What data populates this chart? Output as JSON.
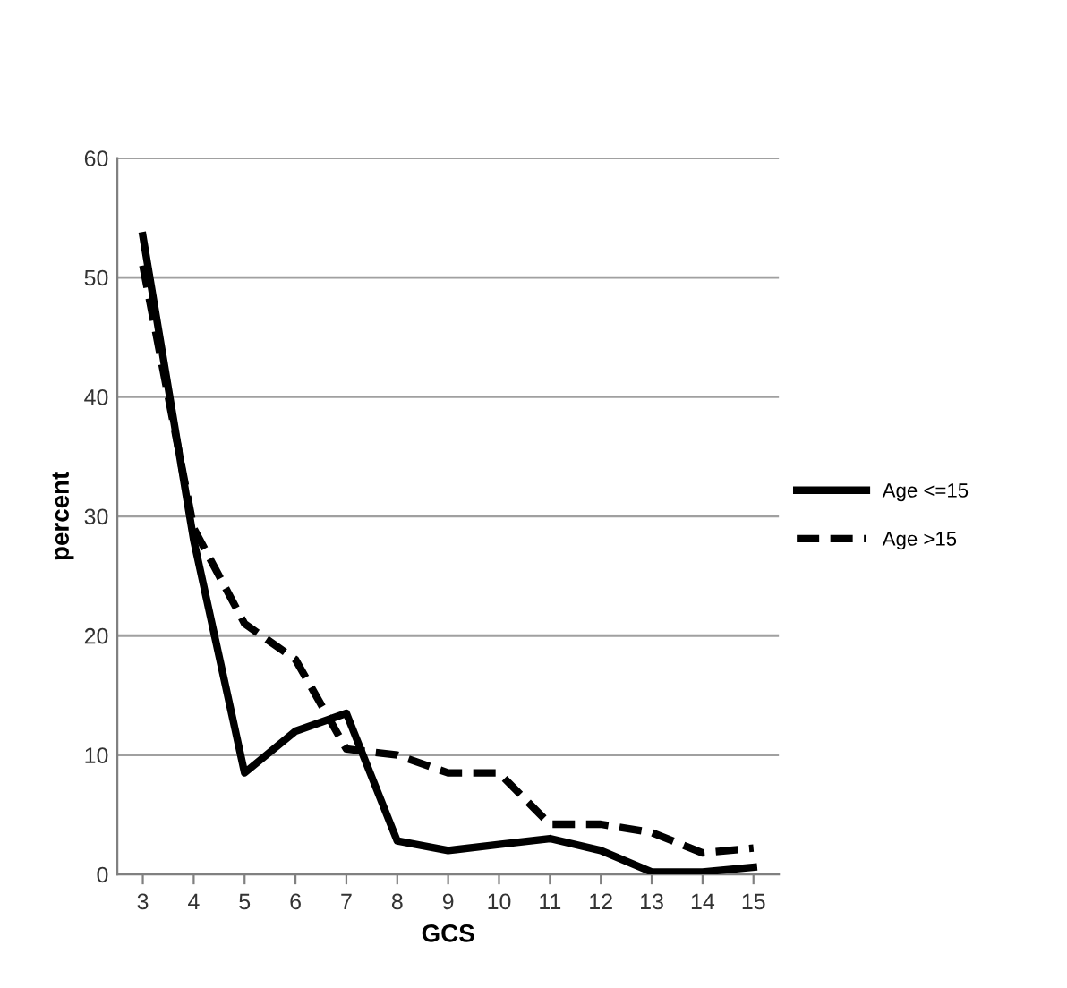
{
  "chart_data": {
    "type": "line",
    "xlabel": "GCS",
    "ylabel": "percent",
    "categories": [
      "3",
      "4",
      "5",
      "6",
      "7",
      "8",
      "9",
      "10",
      "11",
      "12",
      "13",
      "14",
      "15"
    ],
    "series": [
      {
        "name": "Age <=15",
        "color": "#000000",
        "line_style": "solid",
        "values": [
          53.5,
          28,
          8.5,
          12,
          13.5,
          2.8,
          2,
          2.5,
          3,
          2,
          0.2,
          0.2,
          0.6
        ]
      },
      {
        "name": "Age >15",
        "color": "#000000",
        "line_style": "dashed",
        "values": [
          51,
          29,
          21,
          18,
          10.5,
          10,
          8.5,
          8.5,
          4.2,
          4.2,
          3.5,
          1.8,
          2.2
        ]
      }
    ],
    "ylim": [
      0,
      60
    ],
    "yticks": [
      0,
      10,
      20,
      30,
      40,
      50,
      60
    ],
    "grid": "y",
    "legend": "right",
    "marker": "none"
  }
}
